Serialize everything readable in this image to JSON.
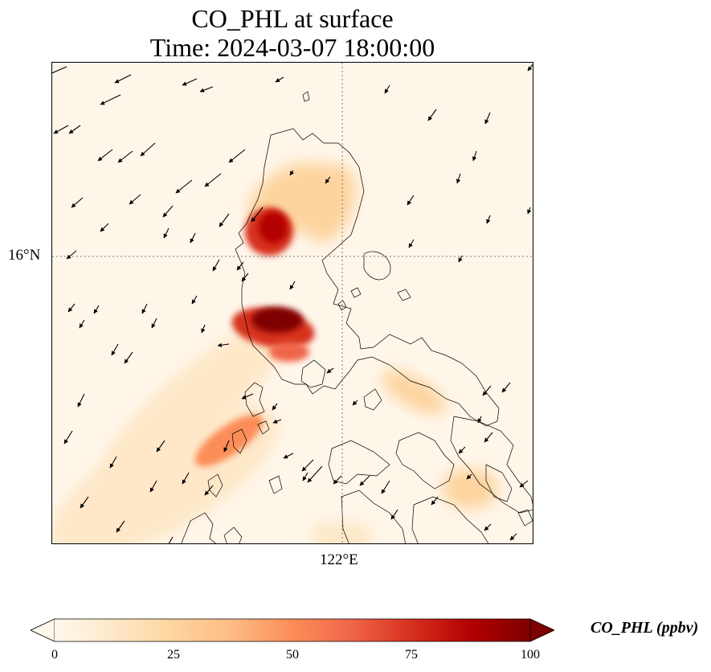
{
  "title": {
    "line1": "CO_PHL at surface",
    "line2": "Time: 2024-03-07 18:00:00"
  },
  "map": {
    "variable": "CO_PHL",
    "level": "surface",
    "colormap": "OrRd",
    "lat_tick_label": "16°N",
    "lon_tick_label": "122°E",
    "gridlines": "dotted",
    "wind_vectors": true,
    "coastlines": true
  },
  "colorbar": {
    "label": "CO_PHL (ppbv)",
    "ticks": [
      "0",
      "25",
      "50",
      "75",
      "100"
    ],
    "min": 0,
    "max": 100,
    "extend": "both",
    "colors": [
      "#fff7ec",
      "#fee8c8",
      "#fdd49e",
      "#fdbb84",
      "#fc8d59",
      "#ef6548",
      "#d7301f",
      "#b30000",
      "#7f0000"
    ]
  }
}
